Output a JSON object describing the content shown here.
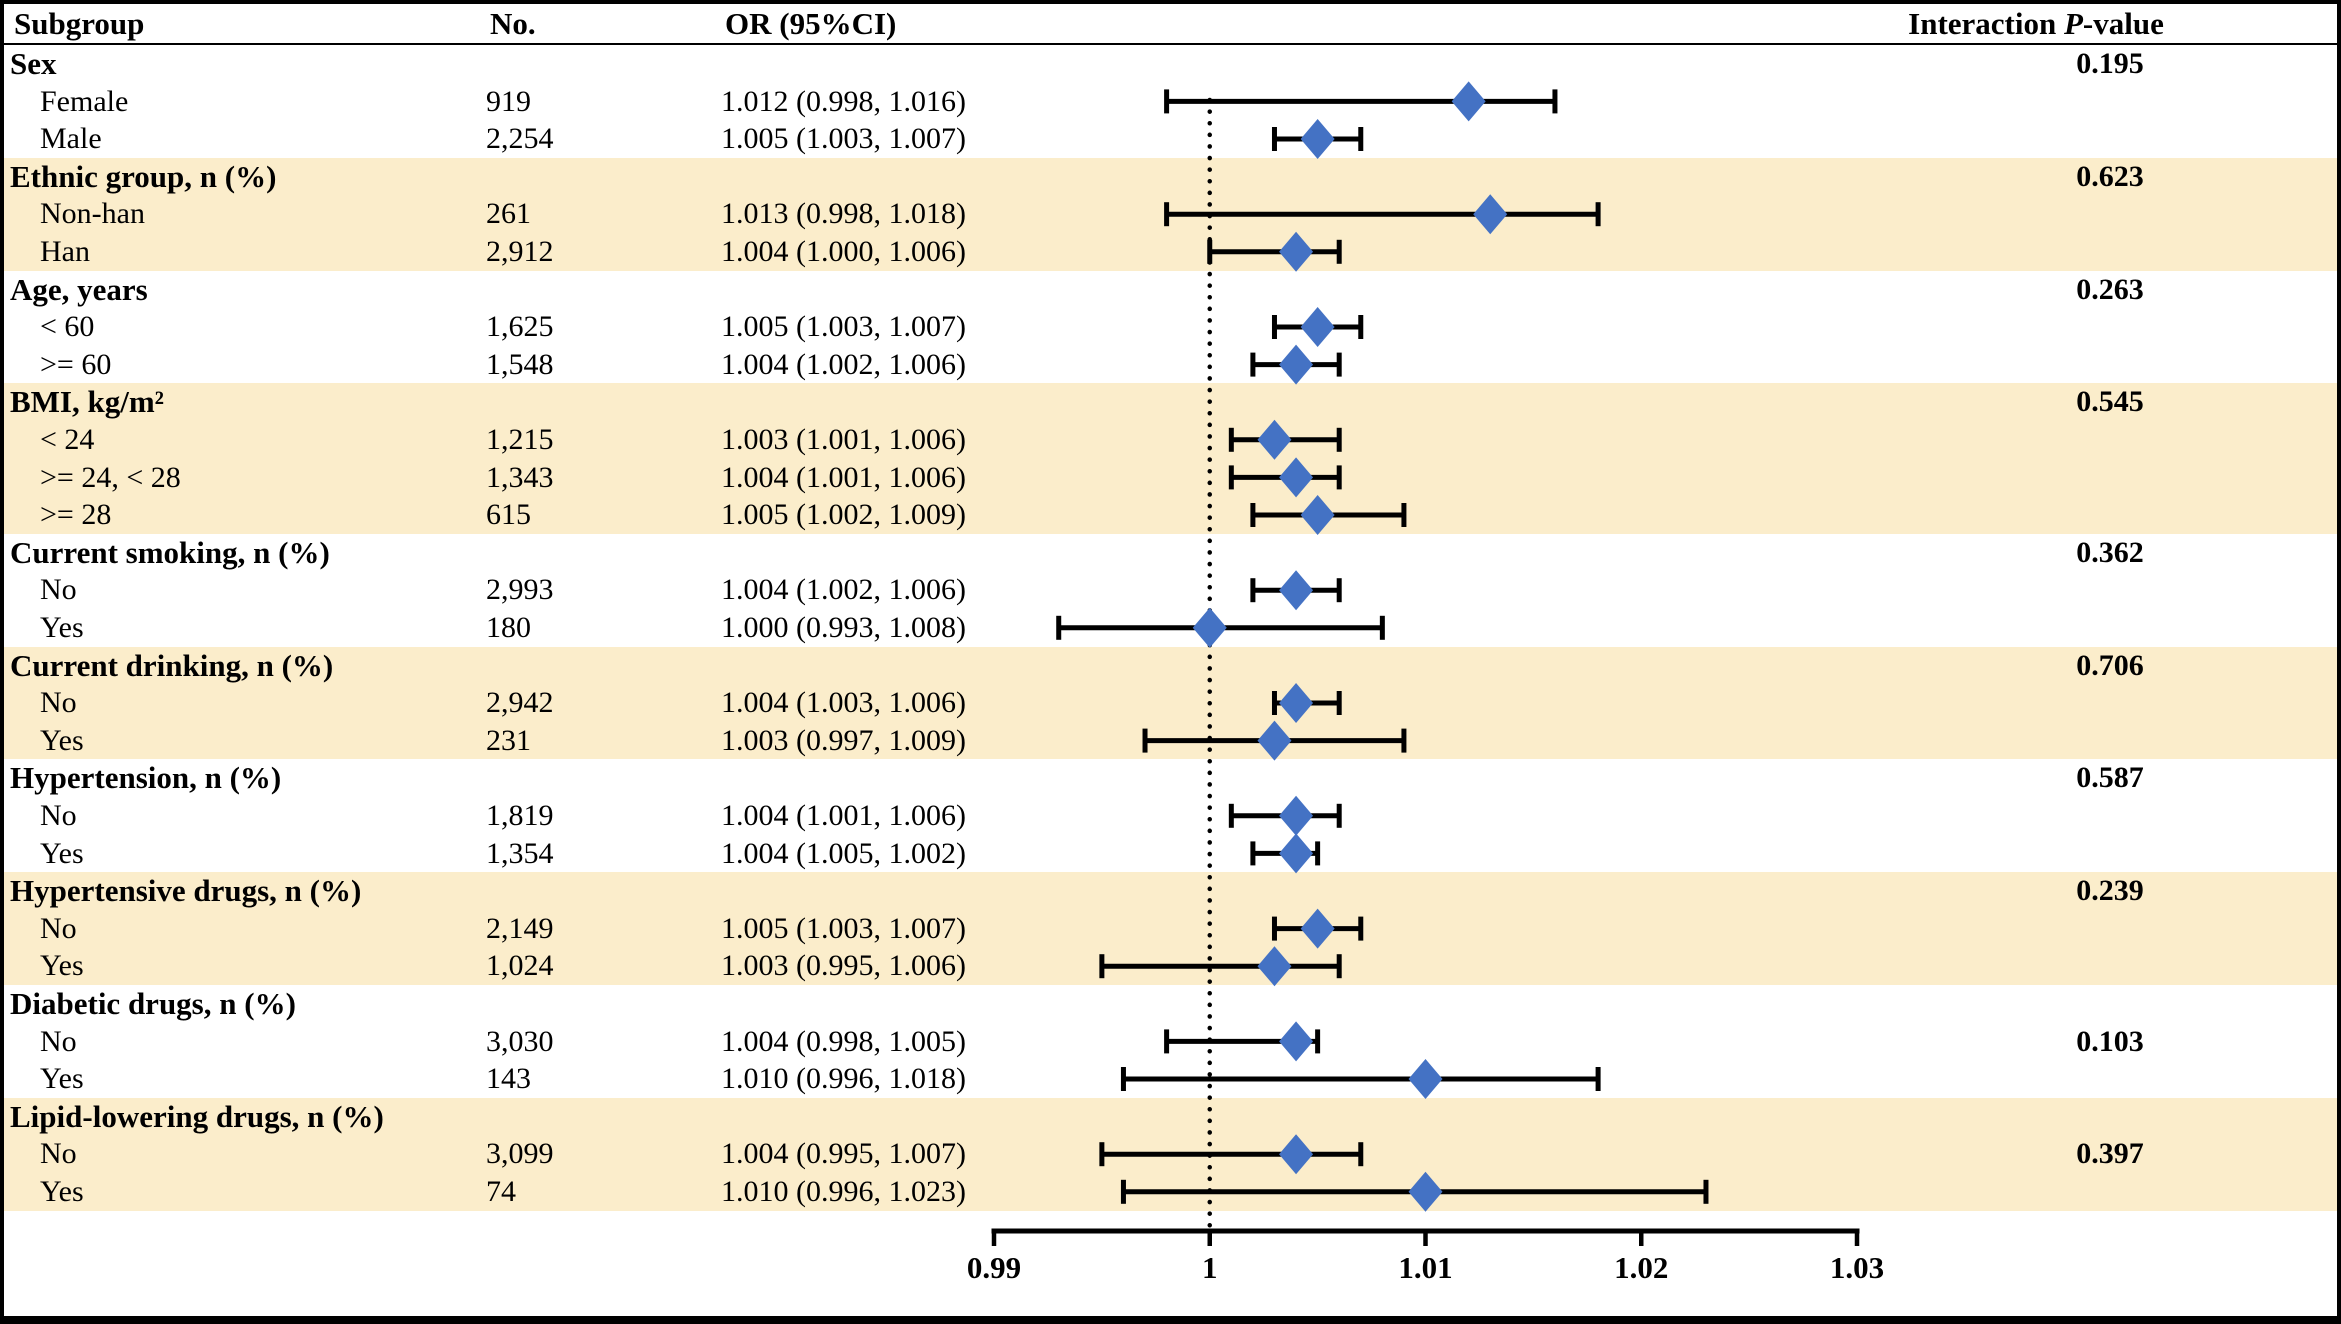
{
  "figure": {
    "header": {
      "subgroup": "Subgroup",
      "no": "No.",
      "or": "OR (95%CI)",
      "interaction_prefix": "Interaction ",
      "interaction_italic": "P",
      "interaction_suffix": "-value"
    },
    "colors": {
      "shaded_row_bg": "#FBEDCB",
      "marker_blue": "#4472C4",
      "line_black": "#000000",
      "background": "#FFFFFF"
    }
  },
  "chart_data": {
    "type": "scatter",
    "variant": "forest-plot",
    "title": "",
    "xlabel": "",
    "x_axis": {
      "ticks": [
        "0.99",
        "1",
        "1.01",
        "1.02",
        "1.03"
      ],
      "values": [
        0.99,
        1,
        1.01,
        1.02,
        1.03
      ],
      "range": [
        0.99,
        1.03
      ],
      "reference_line": 1
    },
    "sections": [
      {
        "label": "Sex",
        "shaded": false,
        "p_value": "0.195",
        "p_row": 0,
        "rows": [
          {
            "label": "Female",
            "n": "919",
            "or_text": "1.012 (0.998, 1.016)",
            "or": 1.012,
            "lo": 0.998,
            "hi": 1.016
          },
          {
            "label": "Male",
            "n": "2,254",
            "or_text": "1.005 (1.003, 1.007)",
            "or": 1.005,
            "lo": 1.003,
            "hi": 1.007
          }
        ]
      },
      {
        "label": "Ethnic group, n (%)",
        "shaded": true,
        "p_value": "0.623",
        "p_row": 0,
        "rows": [
          {
            "label": "Non-han",
            "n": "261",
            "or_text": "1.013 (0.998, 1.018)",
            "or": 1.013,
            "lo": 0.998,
            "hi": 1.018
          },
          {
            "label": "Han",
            "n": "2,912",
            "or_text": "1.004 (1.000, 1.006)",
            "or": 1.004,
            "lo": 1.0,
            "hi": 1.006
          }
        ]
      },
      {
        "label": "Age, years",
        "shaded": false,
        "p_value": "0.263",
        "p_row": 0,
        "rows": [
          {
            "label": "< 60",
            "n": "1,625",
            "or_text": "1.005 (1.003, 1.007)",
            "or": 1.005,
            "lo": 1.003,
            "hi": 1.007
          },
          {
            "label": ">= 60",
            "n": "1,548",
            "or_text": "1.004 (1.002, 1.006)",
            "or": 1.004,
            "lo": 1.002,
            "hi": 1.006
          }
        ]
      },
      {
        "label": "BMI, kg/m²",
        "shaded": true,
        "p_value": "0.545",
        "p_row": 0,
        "rows": [
          {
            "label": "< 24",
            "n": "1,215",
            "or_text": "1.003 (1.001, 1.006)",
            "or": 1.003,
            "lo": 1.001,
            "hi": 1.006
          },
          {
            "label": ">= 24, < 28",
            "n": "1,343",
            "or_text": "1.004 (1.001, 1.006)",
            "or": 1.004,
            "lo": 1.001,
            "hi": 1.006
          },
          {
            "label": ">= 28",
            "n": "615",
            "or_text": "1.005 (1.002, 1.009)",
            "or": 1.005,
            "lo": 1.002,
            "hi": 1.009
          }
        ]
      },
      {
        "label": "Current smoking, n (%)",
        "shaded": false,
        "p_value": "0.362",
        "p_row": 0,
        "rows": [
          {
            "label": "No",
            "n": "2,993",
            "or_text": "1.004 (1.002, 1.006)",
            "or": 1.004,
            "lo": 1.002,
            "hi": 1.006
          },
          {
            "label": "Yes",
            "n": "180",
            "or_text": "1.000 (0.993, 1.008)",
            "or": 1.0,
            "lo": 0.993,
            "hi": 1.008
          }
        ]
      },
      {
        "label": "Current drinking, n (%)",
        "shaded": true,
        "p_value": "0.706",
        "p_row": 0,
        "rows": [
          {
            "label": "No",
            "n": "2,942",
            "or_text": "1.004 (1.003, 1.006)",
            "or": 1.004,
            "lo": 1.003,
            "hi": 1.006
          },
          {
            "label": "Yes",
            "n": "231",
            "or_text": "1.003 (0.997, 1.009)",
            "or": 1.003,
            "lo": 0.997,
            "hi": 1.009
          }
        ]
      },
      {
        "label": "Hypertension, n (%)",
        "shaded": false,
        "p_value": "0.587",
        "p_row": 0,
        "rows": [
          {
            "label": "No",
            "n": "1,819",
            "or_text": "1.004 (1.001, 1.006)",
            "or": 1.004,
            "lo": 1.001,
            "hi": 1.006
          },
          {
            "label": "Yes",
            "n": "1,354",
            "or_text": "1.004 (1.005, 1.002)",
            "or": 1.004,
            "lo": 1.002,
            "hi": 1.005
          }
        ]
      },
      {
        "label": "Hypertensive drugs, n (%)",
        "shaded": true,
        "p_value": "0.239",
        "p_row": 0,
        "rows": [
          {
            "label": "No",
            "n": "2,149",
            "or_text": "1.005 (1.003, 1.007)",
            "or": 1.005,
            "lo": 1.003,
            "hi": 1.007
          },
          {
            "label": "Yes",
            "n": "1,024",
            "or_text": "1.003 (0.995, 1.006)",
            "or": 1.003,
            "lo": 0.995,
            "hi": 1.006
          }
        ]
      },
      {
        "label": "Diabetic drugs, n (%)",
        "shaded": false,
        "p_value": "0.103",
        "p_row": 1,
        "rows": [
          {
            "label": "No",
            "n": "3,030",
            "or_text": "1.004 (0.998, 1.005)",
            "or": 1.004,
            "lo": 0.998,
            "hi": 1.005
          },
          {
            "label": "Yes",
            "n": "143",
            "or_text": "1.010 (0.996, 1.018)",
            "or": 1.01,
            "lo": 0.996,
            "hi": 1.018
          }
        ]
      },
      {
        "label": "Lipid-lowering drugs, n (%)",
        "shaded": true,
        "p_value": "0.397",
        "p_row": 1,
        "rows": [
          {
            "label": "No",
            "n": "3,099",
            "or_text": "1.004 (0.995, 1.007)",
            "or": 1.004,
            "lo": 0.995,
            "hi": 1.007
          },
          {
            "label": "Yes",
            "n": "74",
            "or_text": "1.010 (0.996, 1.023)",
            "or": 1.01,
            "lo": 0.996,
            "hi": 1.023
          }
        ]
      }
    ]
  }
}
